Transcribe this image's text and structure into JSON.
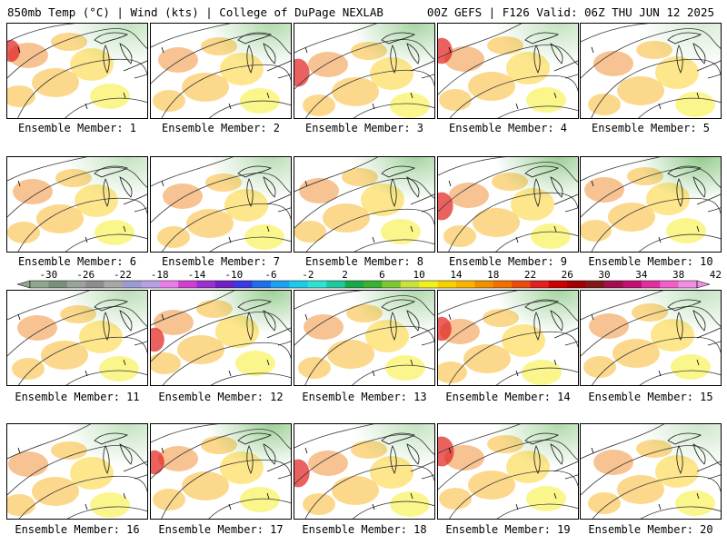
{
  "header": {
    "left": "850mb Temp (°C) | Wind (kts) | College of DuPage NEXLAB",
    "right": "00Z GEFS | F126 Valid: 06Z THU JUN 12 2025"
  },
  "members": [
    {
      "label": "Ensemble Member: 1",
      "warm": 0.55,
      "cool": 0.3
    },
    {
      "label": "Ensemble Member: 2",
      "warm": 0.35,
      "cool": 0.4
    },
    {
      "label": "Ensemble Member: 3",
      "warm": 0.7,
      "cool": 0.45
    },
    {
      "label": "Ensemble Member: 4",
      "warm": 0.65,
      "cool": 0.3
    },
    {
      "label": "Ensemble Member: 5",
      "warm": 0.5,
      "cool": 0.2
    },
    {
      "label": "Ensemble Member: 6",
      "warm": 0.4,
      "cool": 0.3
    },
    {
      "label": "Ensemble Member: 7",
      "warm": 0.45,
      "cool": 0.35
    },
    {
      "label": "Ensemble Member: 8",
      "warm": 0.3,
      "cool": 0.45
    },
    {
      "label": "Ensemble Member: 9",
      "warm": 0.7,
      "cool": 0.5
    },
    {
      "label": "Ensemble Member: 10",
      "warm": 0.3,
      "cool": 0.55
    },
    {
      "label": "Ensemble Member: 11",
      "warm": 0.5,
      "cool": 0.35
    },
    {
      "label": "Ensemble Member: 12",
      "warm": 0.6,
      "cool": 0.5
    },
    {
      "label": "Ensemble Member: 13",
      "warm": 0.35,
      "cool": 0.4
    },
    {
      "label": "Ensemble Member: 14",
      "warm": 0.6,
      "cool": 0.45
    },
    {
      "label": "Ensemble Member: 15",
      "warm": 0.45,
      "cool": 0.3
    },
    {
      "label": "Ensemble Member: 16",
      "warm": 0.4,
      "cool": 0.3
    },
    {
      "label": "Ensemble Member: 17",
      "warm": 0.6,
      "cool": 0.5
    },
    {
      "label": "Ensemble Member: 18",
      "warm": 0.7,
      "cool": 0.3
    },
    {
      "label": "Ensemble Member: 19",
      "warm": 0.75,
      "cool": 0.4
    },
    {
      "label": "Ensemble Member: 20",
      "warm": 0.45,
      "cool": 0.25
    }
  ],
  "colorbar": {
    "tick_labels": [
      "-30",
      "-26",
      "-22",
      "-18",
      "-14",
      "-10",
      "-6",
      "-2",
      "2",
      "6",
      "10",
      "14",
      "18",
      "22",
      "26",
      "30",
      "34",
      "38",
      "42"
    ],
    "colors": [
      "#8ea68e",
      "#7a8f7a",
      "#99a399",
      "#8d8d8d",
      "#a7a7a7",
      "#9b9bd1",
      "#b8a0e0",
      "#e87de8",
      "#d040d0",
      "#9a30d0",
      "#7020c0",
      "#3a3ae0",
      "#1f6fe8",
      "#1da0f0",
      "#20c8e8",
      "#30e0d0",
      "#20c8a0",
      "#18a848",
      "#3cb030",
      "#7ac832",
      "#c8e040",
      "#f0f020",
      "#f8d000",
      "#f8b400",
      "#f09000",
      "#f07000",
      "#e84a10",
      "#e02020",
      "#c80000",
      "#a00000",
      "#801818",
      "#a01050",
      "#c01070",
      "#e030a0",
      "#f060c8",
      "#f090e0"
    ]
  },
  "field_colors": {
    "hot": "#e0201c",
    "warm": "#f07a10",
    "mid": "#f8a800",
    "lightmid": "#fcc800",
    "cool": "#f4ec00",
    "green": "#a8d830",
    "darkgreen": "#3ca030",
    "contour": "#3a3a3a"
  }
}
